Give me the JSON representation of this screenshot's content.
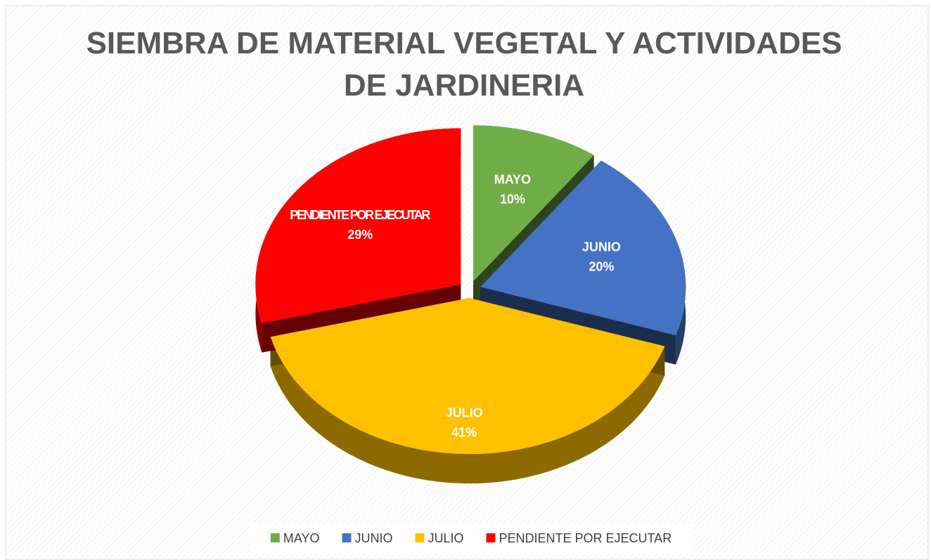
{
  "chart_data": {
    "type": "pie",
    "title": "SIEMBRA DE MATERIAL VEGETAL Y ACTIVIDADES DE JARDINERIA",
    "categories": [
      "MAYO",
      "JUNIO",
      "JULIO",
      "PENDIENTE POR EJECUTAR"
    ],
    "values": [
      10,
      20,
      41,
      29
    ],
    "value_labels": [
      "10%",
      "20%",
      "41%",
      "29%"
    ],
    "colors": [
      "#70ad47",
      "#4472c4",
      "#ffc000",
      "#ff0000"
    ],
    "legend": "bottom"
  }
}
